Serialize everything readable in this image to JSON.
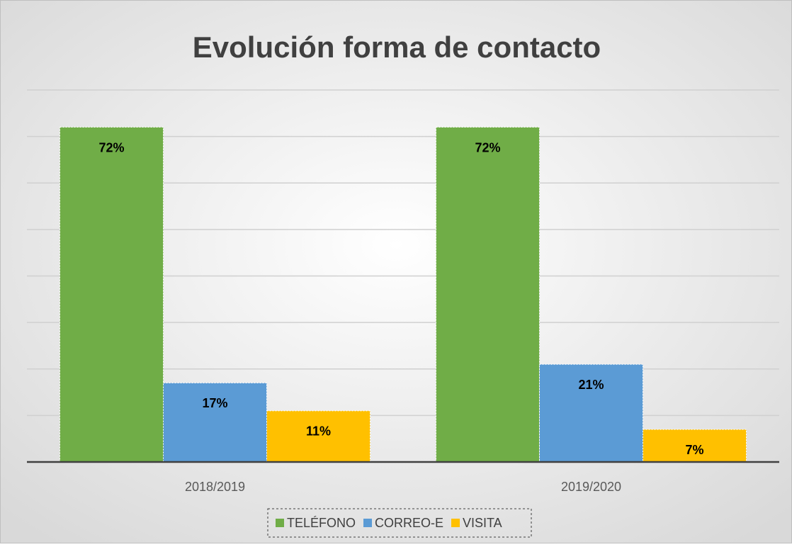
{
  "chart_data": {
    "type": "bar",
    "title": "Evolución forma de contacto",
    "categories": [
      "2018/2019",
      "2019/2020"
    ],
    "series": [
      {
        "name": "TELÉFONO",
        "color": "#70ad47",
        "values": [
          72,
          72
        ],
        "value_labels": [
          "72%",
          "72%"
        ]
      },
      {
        "name": "CORREO-E",
        "color": "#5b9bd5",
        "values": [
          17,
          21
        ],
        "value_labels": [
          "17%",
          "21%"
        ]
      },
      {
        "name": "VISITA",
        "color": "#ffc000",
        "values": [
          11,
          7
        ],
        "value_labels": [
          "11%",
          "7%"
        ]
      }
    ],
    "ylim": [
      0,
      80
    ],
    "yticks": [
      0,
      10,
      20,
      30,
      40,
      50,
      60,
      70,
      80
    ],
    "grid": true,
    "legend": "bottom"
  }
}
